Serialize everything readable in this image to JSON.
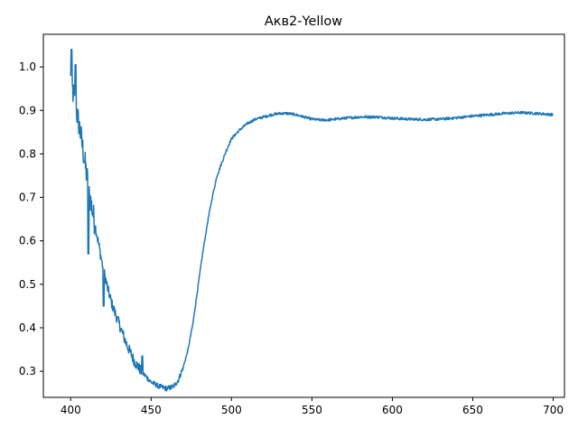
{
  "chart_data": {
    "type": "line",
    "title": "Акв2-Yellow",
    "xlabel": "",
    "ylabel": "",
    "xlim": [
      383,
      707
    ],
    "ylim": [
      0.24,
      1.075
    ],
    "xticks": [
      400,
      450,
      500,
      550,
      600,
      650,
      700
    ],
    "yticks": [
      0.3,
      0.4,
      0.5,
      0.6,
      0.7,
      0.8,
      0.9,
      1.0
    ],
    "xtick_labels": [
      "400",
      "450",
      "500",
      "550",
      "600",
      "650",
      "700"
    ],
    "ytick_labels": [
      "0.3",
      "0.4",
      "0.5",
      "0.6",
      "0.7",
      "0.8",
      "0.9",
      "1.0"
    ],
    "grid": false,
    "legend": "none",
    "line_color": "#1f77b4",
    "series": [
      {
        "x": [
          400,
          402,
          404,
          406,
          408,
          410,
          412,
          415,
          418,
          420,
          423,
          426,
          430,
          435,
          440,
          445,
          450,
          455,
          460,
          464,
          467,
          470,
          473,
          476,
          479,
          482,
          485,
          488,
          491,
          494,
          497,
          500,
          505,
          510,
          515,
          520,
          525,
          530,
          535,
          540,
          545,
          550,
          555,
          560,
          565,
          570,
          580,
          590,
          600,
          610,
          620,
          630,
          640,
          650,
          660,
          670,
          680,
          690,
          700
        ],
        "y": [
          0.97,
          0.93,
          0.89,
          0.85,
          0.8,
          0.75,
          0.7,
          0.64,
          0.58,
          0.54,
          0.49,
          0.45,
          0.41,
          0.36,
          0.32,
          0.295,
          0.275,
          0.265,
          0.26,
          0.265,
          0.28,
          0.31,
          0.35,
          0.41,
          0.49,
          0.57,
          0.64,
          0.7,
          0.75,
          0.78,
          0.81,
          0.835,
          0.855,
          0.87,
          0.88,
          0.885,
          0.89,
          0.893,
          0.893,
          0.89,
          0.885,
          0.88,
          0.878,
          0.878,
          0.88,
          0.882,
          0.885,
          0.885,
          0.882,
          0.88,
          0.879,
          0.88,
          0.883,
          0.887,
          0.89,
          0.893,
          0.895,
          0.893,
          0.89
        ]
      }
    ]
  }
}
